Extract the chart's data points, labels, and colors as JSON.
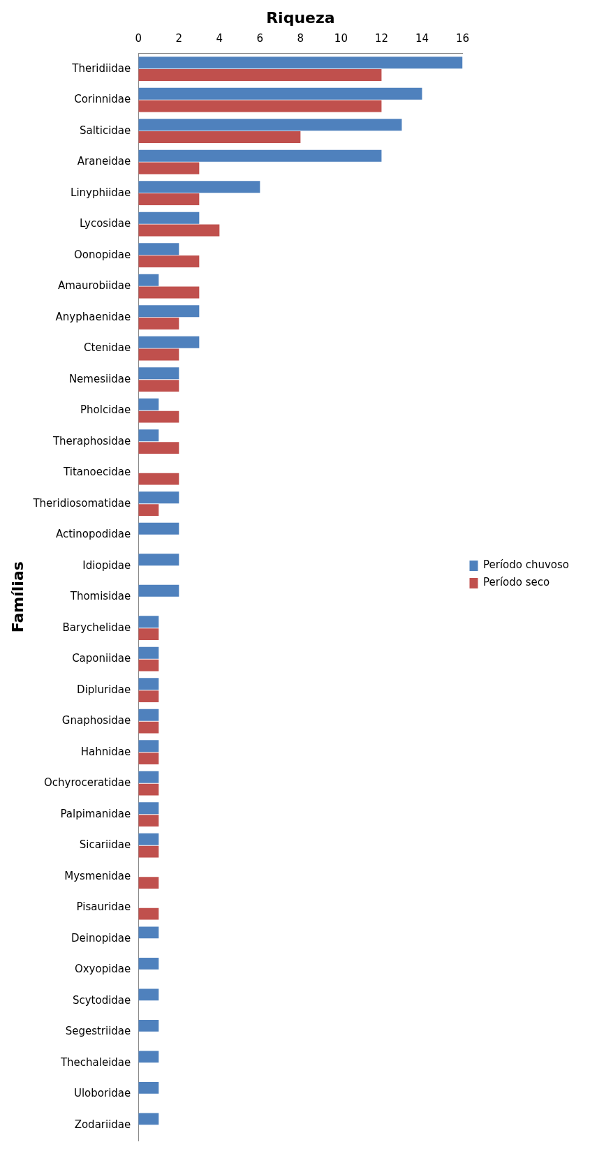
{
  "chart_data": {
    "type": "bar",
    "orientation": "horizontal",
    "xlabel": "Riqueza",
    "ylabel": "Famílias",
    "categories": [
      "Theridiidae",
      "Corinnidae",
      "Salticidae",
      "Araneidae",
      "Linyphiidae",
      "Lycosidae",
      "Oonopidae",
      "Amaurobiidae",
      "Anyphaenidae",
      "Ctenidae",
      "Nemesiidae",
      "Pholcidae",
      "Theraphosidae",
      "Titanoecidae",
      "Theridiosomatidae",
      "Actinopodidae",
      "Idiopidae",
      "Thomisidae",
      "Barychelidae",
      "Caponiidae",
      "Dipluridae",
      "Gnaphosidae",
      "Hahnidae",
      "Ochyroceratidae",
      "Palpimanidae",
      "Sicariidae",
      "Mysmenidae",
      "Pisauridae",
      "Deinopidae",
      "Oxyopidae",
      "Scytodidae",
      "Segestriidae",
      "Thechaleidae",
      "Uloboridae",
      "Zodariidae"
    ],
    "series": [
      {
        "name": "Período chuvoso",
        "color": "#4f81bd",
        "values": [
          16,
          14,
          13,
          12,
          6,
          3,
          2,
          1,
          3,
          3,
          2,
          1,
          1,
          0,
          2,
          2,
          2,
          2,
          1,
          1,
          1,
          1,
          1,
          1,
          1,
          1,
          0,
          0,
          1,
          1,
          1,
          1,
          1,
          1,
          1
        ]
      },
      {
        "name": "Período seco",
        "color": "#c0504d",
        "values": [
          12,
          12,
          8,
          3,
          3,
          4,
          3,
          3,
          2,
          2,
          2,
          2,
          2,
          2,
          1,
          0,
          0,
          0,
          1,
          1,
          1,
          1,
          1,
          1,
          1,
          1,
          1,
          1,
          0,
          0,
          0,
          0,
          0,
          0,
          0
        ]
      }
    ],
    "xlim": [
      0,
      16
    ],
    "xticks": [
      0,
      2,
      4,
      6,
      8,
      10,
      12,
      14,
      16
    ],
    "grid": false,
    "legend": "right"
  }
}
